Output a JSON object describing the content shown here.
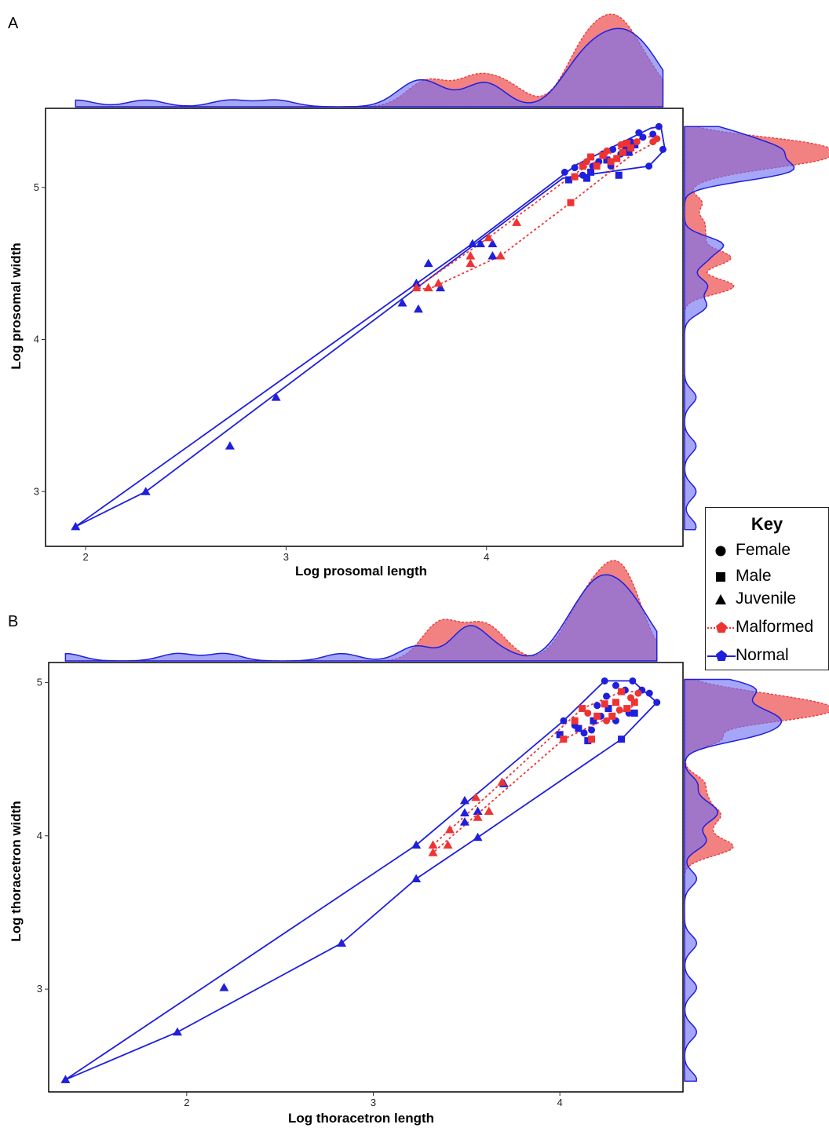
{
  "figure": {
    "panel_a_letter": "A",
    "panel_b_letter": "B",
    "legend": {
      "title": "Key",
      "shapes": [
        {
          "label": "Female",
          "shape": "circle"
        },
        {
          "label": "Male",
          "shape": "square"
        },
        {
          "label": "Juvenile",
          "shape": "triangle"
        }
      ],
      "groups": [
        {
          "label": "Malformed",
          "color": "#ee3333",
          "line": "dotted"
        },
        {
          "label": "Normal",
          "color": "#1f1fdd",
          "line": "solid"
        }
      ]
    }
  },
  "colors": {
    "malformed": "#ee3333",
    "normal": "#1f1fdd",
    "overlap_fill": "#7b3aa8",
    "malformed_fill": "#f06b6b",
    "normal_fill": "#6f6ff5"
  },
  "chart_data": [
    {
      "type": "scatter",
      "panel": "A",
      "xlabel": "Log prosomal length",
      "ylabel": "Log prosomal width",
      "xlim": [
        1.8,
        4.98
      ],
      "ylim": [
        2.64,
        5.52
      ],
      "xticks": [
        "2",
        "3",
        "4"
      ],
      "yticks": [
        "3",
        "4",
        "5"
      ],
      "xtick_values": [
        2,
        3,
        4
      ],
      "ytick_values": [
        3,
        4,
        5
      ],
      "grid": false,
      "series": [
        {
          "name": "Normal",
          "color": "#1f1fdd",
          "points": [
            [
              1.95,
              2.77,
              "juvenile"
            ],
            [
              2.3,
              3.0,
              "juvenile"
            ],
            [
              2.72,
              3.3,
              "juvenile"
            ],
            [
              2.95,
              3.62,
              "juvenile"
            ],
            [
              3.58,
              4.24,
              "juvenile"
            ],
            [
              3.66,
              4.2,
              "juvenile"
            ],
            [
              3.65,
              4.37,
              "juvenile"
            ],
            [
              3.71,
              4.5,
              "juvenile"
            ],
            [
              3.77,
              4.34,
              "juvenile"
            ],
            [
              3.93,
              4.63,
              "juvenile"
            ],
            [
              3.97,
              4.63,
              "juvenile"
            ],
            [
              4.03,
              4.63,
              "juvenile"
            ],
            [
              4.03,
              4.55,
              "juvenile"
            ],
            [
              4.39,
              5.1,
              "female"
            ],
            [
              4.44,
              5.13,
              "female"
            ],
            [
              4.48,
              5.08,
              "female"
            ],
            [
              4.53,
              5.14,
              "female"
            ],
            [
              4.58,
              5.22,
              "female"
            ],
            [
              4.63,
              5.25,
              "female"
            ],
            [
              4.67,
              5.22,
              "female"
            ],
            [
              4.72,
              5.3,
              "female"
            ],
            [
              4.76,
              5.36,
              "female"
            ],
            [
              4.78,
              5.33,
              "female"
            ],
            [
              4.83,
              5.35,
              "female"
            ],
            [
              4.86,
              5.4,
              "female"
            ],
            [
              4.88,
              5.25,
              "female"
            ],
            [
              4.81,
              5.14,
              "female"
            ],
            [
              4.62,
              5.14,
              "female"
            ],
            [
              4.56,
              5.17,
              "female"
            ],
            [
              4.69,
              5.27,
              "female"
            ],
            [
              4.41,
              5.05,
              "male"
            ],
            [
              4.5,
              5.06,
              "male"
            ],
            [
              4.52,
              5.1,
              "male"
            ],
            [
              4.6,
              5.18,
              "male"
            ],
            [
              4.66,
              5.08,
              "male"
            ],
            [
              4.71,
              5.23,
              "male"
            ],
            [
              4.74,
              5.28,
              "male"
            ]
          ],
          "hull": [
            [
              1.95,
              2.77
            ],
            [
              3.93,
              4.63
            ],
            [
              4.45,
              5.15
            ],
            [
              4.82,
              5.39
            ],
            [
              4.87,
              5.4
            ],
            [
              4.89,
              5.25
            ],
            [
              4.81,
              5.14
            ],
            [
              4.38,
              5.06
            ],
            [
              2.3,
              3.0
            ]
          ]
        },
        {
          "name": "Malformed",
          "color": "#ee3333",
          "points": [
            [
              3.65,
              4.34,
              "juvenile"
            ],
            [
              3.71,
              4.34,
              "juvenile"
            ],
            [
              3.76,
              4.37,
              "juvenile"
            ],
            [
              3.92,
              4.5,
              "juvenile"
            ],
            [
              3.92,
              4.55,
              "juvenile"
            ],
            [
              4.01,
              4.67,
              "juvenile"
            ],
            [
              4.07,
              4.55,
              "juvenile"
            ],
            [
              4.15,
              4.77,
              "juvenile"
            ],
            [
              4.42,
              4.9,
              "male"
            ],
            [
              4.44,
              5.07,
              "male"
            ],
            [
              4.48,
              5.14,
              "male"
            ],
            [
              4.52,
              5.2,
              "male"
            ],
            [
              4.55,
              5.14,
              "male"
            ],
            [
              4.58,
              5.21,
              "male"
            ],
            [
              4.62,
              5.17,
              "male"
            ],
            [
              4.65,
              5.19,
              "male"
            ],
            [
              4.68,
              5.23,
              "male"
            ],
            [
              4.7,
              5.29,
              "male"
            ],
            [
              4.72,
              5.26,
              "male"
            ],
            [
              4.5,
              5.17,
              "female"
            ],
            [
              4.6,
              5.24,
              "female"
            ],
            [
              4.67,
              5.28,
              "female"
            ],
            [
              4.75,
              5.3,
              "female"
            ],
            [
              4.83,
              5.3,
              "female"
            ],
            [
              4.85,
              5.32,
              "female"
            ]
          ],
          "hull": [
            [
              3.65,
              4.34
            ],
            [
              4.01,
              4.67
            ],
            [
              4.44,
              5.09
            ],
            [
              4.73,
              5.31
            ],
            [
              4.84,
              5.34
            ],
            [
              4.86,
              5.31
            ],
            [
              4.72,
              5.21
            ],
            [
              4.42,
              4.9
            ],
            [
              4.07,
              4.55
            ],
            [
              3.71,
              4.33
            ]
          ]
        }
      ]
    },
    {
      "type": "scatter",
      "panel": "B",
      "xlabel": "Log thoracetron length",
      "ylabel": "Log thoracetron width",
      "xlim": [
        1.26,
        4.66
      ],
      "ylim": [
        2.33,
        5.13
      ],
      "xticks": [
        "2",
        "3",
        "4"
      ],
      "yticks": [
        "3",
        "4",
        "5"
      ],
      "xtick_values": [
        2,
        3,
        4
      ],
      "ytick_values": [
        3,
        4,
        5
      ],
      "grid": false,
      "series": [
        {
          "name": "Normal",
          "color": "#1f1fdd",
          "points": [
            [
              1.35,
              2.41,
              "juvenile"
            ],
            [
              1.95,
              2.72,
              "juvenile"
            ],
            [
              2.2,
              3.01,
              "juvenile"
            ],
            [
              2.83,
              3.3,
              "juvenile"
            ],
            [
              3.23,
              3.72,
              "juvenile"
            ],
            [
              3.23,
              3.94,
              "juvenile"
            ],
            [
              3.49,
              4.23,
              "juvenile"
            ],
            [
              3.49,
              4.15,
              "juvenile"
            ],
            [
              3.49,
              4.09,
              "juvenile"
            ],
            [
              3.56,
              4.16,
              "juvenile"
            ],
            [
              3.56,
              3.99,
              "juvenile"
            ],
            [
              3.7,
              4.34,
              "juvenile"
            ],
            [
              4.02,
              4.75,
              "female"
            ],
            [
              4.08,
              4.72,
              "female"
            ],
            [
              4.13,
              4.67,
              "female"
            ],
            [
              4.17,
              4.69,
              "female"
            ],
            [
              4.22,
              4.78,
              "female"
            ],
            [
              4.24,
              5.01,
              "female"
            ],
            [
              4.25,
              4.91,
              "female"
            ],
            [
              4.3,
              4.98,
              "female"
            ],
            [
              4.35,
              4.95,
              "female"
            ],
            [
              4.39,
              5.01,
              "female"
            ],
            [
              4.44,
              4.95,
              "female"
            ],
            [
              4.48,
              4.93,
              "female"
            ],
            [
              4.52,
              4.87,
              "female"
            ],
            [
              4.37,
              4.8,
              "female"
            ],
            [
              4.3,
              4.75,
              "female"
            ],
            [
              4.2,
              4.85,
              "female"
            ],
            [
              4.0,
              4.66,
              "male"
            ],
            [
              4.1,
              4.7,
              "male"
            ],
            [
              4.15,
              4.62,
              "male"
            ],
            [
              4.18,
              4.75,
              "male"
            ],
            [
              4.26,
              4.83,
              "male"
            ],
            [
              4.33,
              4.63,
              "male"
            ],
            [
              4.4,
              4.8,
              "male"
            ]
          ],
          "hull": [
            [
              1.35,
              2.41
            ],
            [
              3.23,
              3.94
            ],
            [
              4.02,
              4.75
            ],
            [
              4.24,
              5.01
            ],
            [
              4.39,
              5.01
            ],
            [
              4.52,
              4.87
            ],
            [
              4.33,
              4.63
            ],
            [
              3.56,
              3.99
            ],
            [
              3.23,
              3.72
            ],
            [
              2.83,
              3.3
            ],
            [
              1.95,
              2.72
            ]
          ]
        },
        {
          "name": "Malformed",
          "color": "#ee3333",
          "points": [
            [
              3.32,
              3.94,
              "juvenile"
            ],
            [
              3.32,
              3.89,
              "juvenile"
            ],
            [
              3.4,
              3.94,
              "juvenile"
            ],
            [
              3.41,
              4.04,
              "juvenile"
            ],
            [
              3.55,
              4.25,
              "juvenile"
            ],
            [
              3.56,
              4.12,
              "juvenile"
            ],
            [
              3.62,
              4.16,
              "juvenile"
            ],
            [
              3.69,
              4.35,
              "juvenile"
            ],
            [
              4.02,
              4.63,
              "male"
            ],
            [
              4.08,
              4.75,
              "male"
            ],
            [
              4.12,
              4.83,
              "male"
            ],
            [
              4.17,
              4.63,
              "male"
            ],
            [
              4.2,
              4.78,
              "male"
            ],
            [
              4.24,
              4.86,
              "male"
            ],
            [
              4.28,
              4.78,
              "male"
            ],
            [
              4.3,
              4.87,
              "male"
            ],
            [
              4.33,
              4.94,
              "male"
            ],
            [
              4.36,
              4.83,
              "male"
            ],
            [
              4.4,
              4.87,
              "male"
            ],
            [
              4.15,
              4.8,
              "female"
            ],
            [
              4.25,
              4.75,
              "female"
            ],
            [
              4.32,
              4.82,
              "female"
            ],
            [
              4.38,
              4.9,
              "female"
            ],
            [
              4.42,
              4.93,
              "female"
            ]
          ],
          "hull": [
            [
              3.32,
              3.94
            ],
            [
              3.69,
              4.35
            ],
            [
              4.12,
              4.83
            ],
            [
              4.33,
              4.94
            ],
            [
              4.42,
              4.94
            ],
            [
              4.4,
              4.85
            ],
            [
              4.02,
              4.63
            ],
            [
              3.32,
              3.89
            ]
          ]
        }
      ]
    }
  ]
}
